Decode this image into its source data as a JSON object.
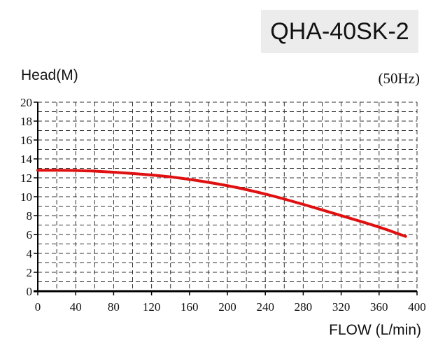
{
  "chart_data": {
    "type": "line",
    "title": "QHA-40SK-2",
    "subtitle": "(50Hz)",
    "xlabel": "FLOW (L/min)",
    "ylabel": "Head(M)",
    "xlim": [
      0,
      400
    ],
    "ylim": [
      0,
      20
    ],
    "xticks": [
      0,
      40,
      80,
      120,
      160,
      200,
      240,
      280,
      320,
      360,
      400
    ],
    "yticks": [
      0,
      2,
      4,
      6,
      8,
      10,
      12,
      14,
      16,
      18,
      20
    ],
    "grid": true,
    "grid_style": "dashed",
    "series": [
      {
        "color": "#e01010",
        "x": [
          0,
          40,
          80,
          120,
          150,
          200,
          240,
          280,
          320,
          360,
          388
        ],
        "y": [
          12.8,
          12.8,
          12.6,
          12.3,
          12.0,
          11.2,
          10.3,
          9.2,
          8.0,
          6.8,
          5.8
        ]
      }
    ]
  }
}
